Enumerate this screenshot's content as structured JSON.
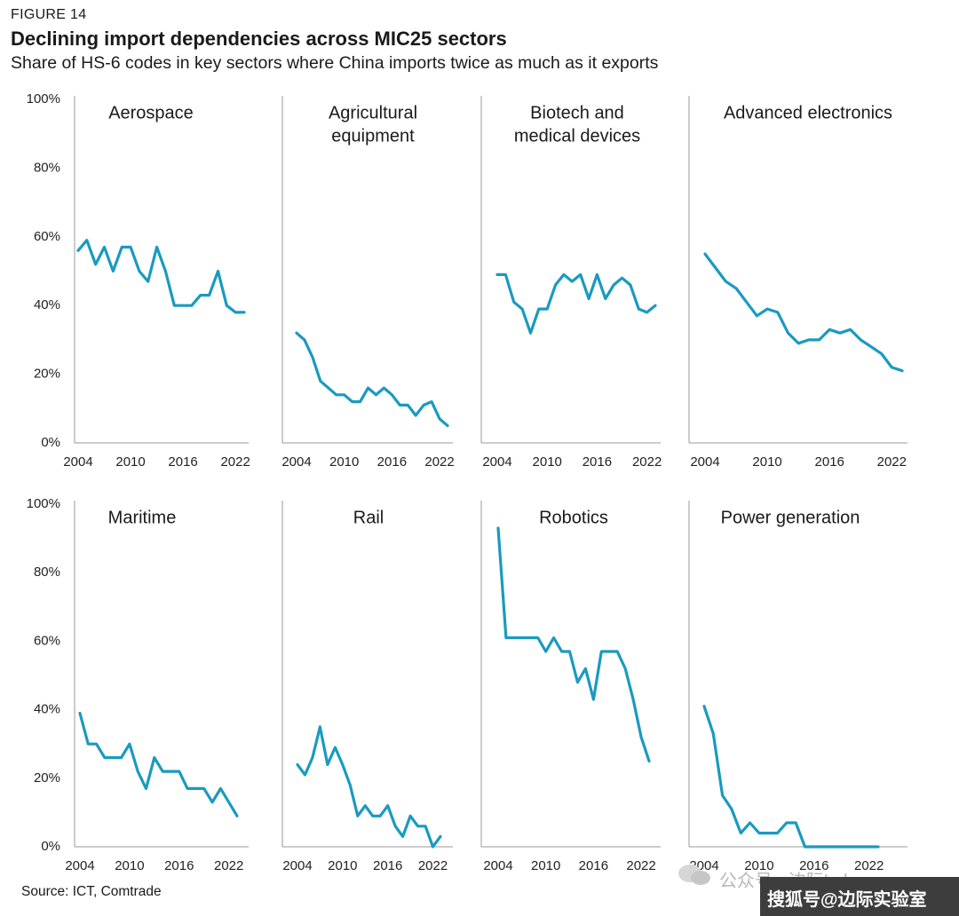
{
  "figure_label": "FIGURE 14",
  "title": "Declining import dependencies across MIC25 sectors",
  "subtitle": "Share of HS-6 codes in key sectors where China imports twice as much as it exports",
  "source": "Source: ICT, Comtrade",
  "watermark": {
    "text": "公众号 · 边际Lab",
    "bar_text": "搜狐号@边际实验室"
  },
  "colors": {
    "line": "#1a9ac0",
    "axis": "#999999",
    "text": "#1a1a1a"
  },
  "chart_data": [
    {
      "type": "line",
      "title": [
        "Aerospace"
      ],
      "x": [
        2004,
        2005,
        2006,
        2007,
        2008,
        2009,
        2010,
        2011,
        2012,
        2013,
        2014,
        2015,
        2016,
        2017,
        2018,
        2019,
        2020,
        2021,
        2022,
        2023
      ],
      "values": [
        56,
        59,
        52,
        57,
        50,
        57,
        57,
        50,
        47,
        57,
        50,
        40,
        40,
        40,
        43,
        43,
        50,
        40,
        38,
        38
      ],
      "xticks": [
        "2004",
        "2010",
        "2016",
        "2022"
      ],
      "yticks": [
        "100%",
        "80%",
        "60%",
        "40%",
        "20%",
        "0%"
      ],
      "ylim": [
        0,
        100
      ]
    },
    {
      "type": "line",
      "title": [
        "Agricultural",
        "equipment"
      ],
      "x": [
        2004,
        2005,
        2006,
        2007,
        2008,
        2009,
        2010,
        2011,
        2012,
        2013,
        2014,
        2015,
        2016,
        2017,
        2018,
        2019,
        2020,
        2021,
        2022,
        2023
      ],
      "values": [
        32,
        30,
        25,
        18,
        16,
        14,
        14,
        12,
        12,
        16,
        14,
        16,
        14,
        11,
        11,
        8,
        11,
        12,
        7,
        5
      ],
      "xticks": [
        "2004",
        "2010",
        "2016",
        "2022"
      ],
      "yticks": [],
      "ylim": [
        0,
        100
      ]
    },
    {
      "type": "line",
      "title": [
        "Biotech and",
        "medical devices"
      ],
      "x": [
        2004,
        2005,
        2006,
        2007,
        2008,
        2009,
        2010,
        2011,
        2012,
        2013,
        2014,
        2015,
        2016,
        2017,
        2018,
        2019,
        2020,
        2021,
        2022,
        2023
      ],
      "values": [
        49,
        49,
        41,
        39,
        32,
        39,
        39,
        46,
        49,
        47,
        49,
        42,
        49,
        42,
        46,
        48,
        46,
        39,
        38,
        40
      ],
      "xticks": [
        "2004",
        "2010",
        "2016",
        "2022"
      ],
      "yticks": [],
      "ylim": [
        0,
        100
      ]
    },
    {
      "type": "line",
      "title": [
        "Advanced electronics"
      ],
      "x": [
        2004,
        2005,
        2006,
        2007,
        2008,
        2009,
        2010,
        2011,
        2012,
        2013,
        2014,
        2015,
        2016,
        2017,
        2018,
        2019,
        2020,
        2021,
        2022,
        2023
      ],
      "values": [
        55,
        51,
        47,
        45,
        41,
        37,
        39,
        38,
        32,
        29,
        30,
        30,
        33,
        32,
        33,
        30,
        28,
        26,
        22,
        21
      ],
      "xticks": [
        "2004",
        "2010",
        "2016",
        "2022"
      ],
      "yticks": [],
      "ylim": [
        0,
        100
      ]
    },
    {
      "type": "line",
      "title": [
        "Maritime"
      ],
      "x": [
        2004,
        2005,
        2006,
        2007,
        2008,
        2009,
        2010,
        2011,
        2012,
        2013,
        2014,
        2015,
        2016,
        2017,
        2018,
        2019,
        2020,
        2021,
        2022,
        2023
      ],
      "values": [
        39,
        30,
        30,
        26,
        26,
        26,
        30,
        22,
        17,
        26,
        22,
        22,
        22,
        17,
        17,
        17,
        13,
        17,
        13,
        9
      ],
      "xticks": [
        "2004",
        "2010",
        "2016",
        "2022"
      ],
      "yticks": [
        "100%",
        "80%",
        "60%",
        "40%",
        "20%",
        "0%"
      ],
      "ylim": [
        0,
        100
      ]
    },
    {
      "type": "line",
      "title": [
        "Rail"
      ],
      "x": [
        2004,
        2005,
        2006,
        2007,
        2008,
        2009,
        2010,
        2011,
        2012,
        2013,
        2014,
        2015,
        2016,
        2017,
        2018,
        2019,
        2020,
        2021,
        2022,
        2023
      ],
      "values": [
        24,
        21,
        26,
        35,
        24,
        29,
        24,
        18,
        9,
        12,
        9,
        9,
        12,
        6,
        3,
        9,
        6,
        6,
        0,
        3
      ],
      "xticks": [
        "2004",
        "2010",
        "2016",
        "2022"
      ],
      "yticks": [],
      "ylim": [
        0,
        100
      ]
    },
    {
      "type": "line",
      "title": [
        "Robotics"
      ],
      "x": [
        2004,
        2005,
        2006,
        2007,
        2008,
        2009,
        2010,
        2011,
        2012,
        2013,
        2014,
        2015,
        2016,
        2017,
        2018,
        2019,
        2020,
        2021,
        2022,
        2023
      ],
      "values": [
        93,
        61,
        61,
        61,
        61,
        61,
        57,
        61,
        57,
        57,
        48,
        52,
        43,
        57,
        57,
        57,
        52,
        43,
        32,
        25
      ],
      "xticks": [
        "2004",
        "2010",
        "2016",
        "2022"
      ],
      "yticks": [],
      "ylim": [
        0,
        100
      ]
    },
    {
      "type": "line",
      "title": [
        "Power generation"
      ],
      "x": [
        2004,
        2005,
        2006,
        2007,
        2008,
        2009,
        2010,
        2011,
        2012,
        2013,
        2014,
        2015,
        2016,
        2017,
        2018,
        2019,
        2020,
        2021,
        2022,
        2023
      ],
      "values": [
        41,
        33,
        15,
        11,
        4,
        7,
        4,
        4,
        4,
        7,
        7,
        0,
        0,
        0,
        0,
        0,
        0,
        0,
        0,
        0
      ],
      "xticks": [
        "2004",
        "2010",
        "2016",
        "2022"
      ],
      "yticks": [],
      "ylim": [
        0,
        100
      ]
    }
  ]
}
